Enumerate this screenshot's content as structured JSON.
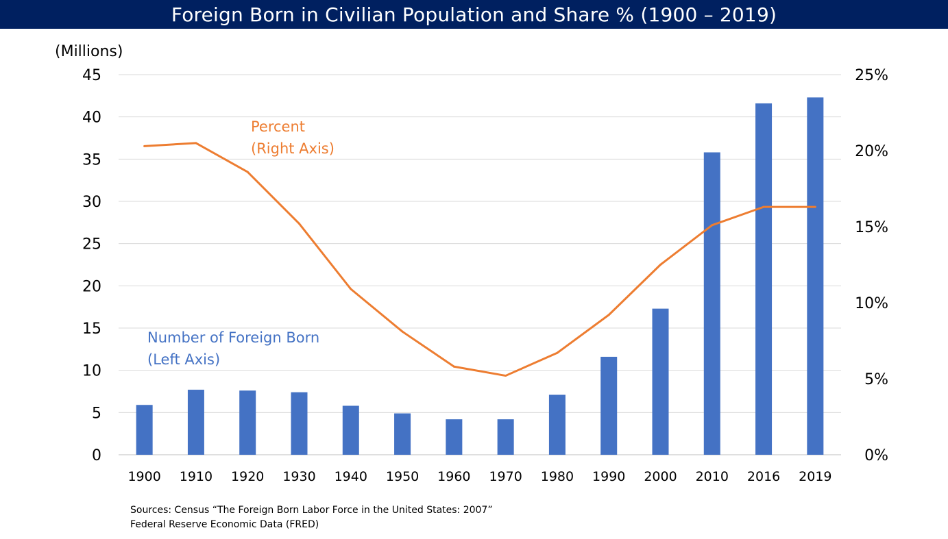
{
  "title": "Foreign Born in Civilian Population and Share % (1900 – 2019)",
  "chart_data": {
    "type": "bar",
    "categories": [
      "1900",
      "1910",
      "1920",
      "1930",
      "1940",
      "1950",
      "1960",
      "1970",
      "1980",
      "1990",
      "2000",
      "2010",
      "2016",
      "2019"
    ],
    "series": [
      {
        "type": "bar",
        "axis": "left",
        "values": [
          5.9,
          7.7,
          7.6,
          7.4,
          5.8,
          4.9,
          4.2,
          4.2,
          7.1,
          11.6,
          17.3,
          35.8,
          41.6,
          42.3
        ],
        "color": "#4472C4"
      },
      {
        "type": "line",
        "axis": "right",
        "values": [
          20.3,
          20.5,
          18.6,
          15.2,
          10.9,
          8.1,
          5.8,
          5.2,
          6.7,
          9.2,
          12.5,
          15.1,
          16.3,
          16.3
        ],
        "color": "#ED7D31"
      }
    ],
    "left_axis": {
      "label": "(Millions)",
      "ylim": [
        0,
        45
      ],
      "ticks": [
        "0",
        "5",
        "10",
        "15",
        "20",
        "25",
        "30",
        "35",
        "40",
        "45"
      ]
    },
    "right_axis": {
      "ylim": [
        0,
        25
      ],
      "ticks": [
        "0%",
        "5%",
        "10%",
        "15%",
        "20%",
        "25%"
      ]
    },
    "annotations": {
      "percent": [
        "Percent",
        "(Right Axis)"
      ],
      "number": [
        "Number of Foreign Born",
        " (Left Axis)"
      ]
    },
    "grid": true,
    "legend": "none"
  },
  "sources": [
    "Sources:  Census “The Foreign Born Labor Force in the United States: 2007”",
    "Federal Reserve Economic Data (FRED)"
  ]
}
